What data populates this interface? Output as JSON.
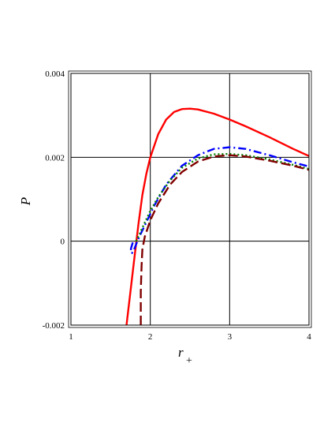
{
  "chart_data": {
    "type": "line",
    "xlabel": "r",
    "xlabel_subscript": "+",
    "ylabel": "P",
    "xlim": [
      1,
      4
    ],
    "ylim": [
      -0.002,
      0.004
    ],
    "grid": true,
    "x_ticks": [
      1,
      2,
      3,
      4
    ],
    "y_ticks": [
      -0.002,
      0,
      0.002,
      0.004
    ],
    "x_tick_labels": [
      "1",
      "2",
      "3",
      "4"
    ],
    "y_tick_labels": [
      "-0.002",
      "0",
      "0.002",
      "0.004"
    ],
    "series": [
      {
        "color": "#ff0000",
        "style": "solid",
        "points": [
          [
            1.7,
            -0.002
          ],
          [
            1.75,
            -0.0012
          ],
          [
            1.8,
            -0.0004
          ],
          [
            1.85,
            0.0004
          ],
          [
            1.9,
            0.0011
          ],
          [
            1.95,
            0.0016
          ],
          [
            2.0,
            0.002
          ],
          [
            2.1,
            0.00255
          ],
          [
            2.2,
            0.0029
          ],
          [
            2.3,
            0.00308
          ],
          [
            2.4,
            0.00315
          ],
          [
            2.5,
            0.00316
          ],
          [
            2.6,
            0.00314
          ],
          [
            2.8,
            0.00304
          ],
          [
            3.0,
            0.0029
          ],
          [
            3.2,
            0.00274
          ],
          [
            3.5,
            0.00248
          ],
          [
            3.8,
            0.0022
          ],
          [
            4.0,
            0.00203
          ]
        ]
      },
      {
        "color": "#0000ff",
        "style": "dashdot",
        "points": [
          [
            1.78,
            -3e-05
          ],
          [
            1.76,
            -0.00015
          ],
          [
            1.75,
            -0.00025
          ],
          [
            1.77,
            -0.00028
          ],
          [
            1.8,
            -0.00018
          ],
          [
            1.83,
            -3e-05
          ],
          [
            1.88,
            0.00018
          ],
          [
            1.95,
            0.00045
          ],
          [
            2.05,
            0.00085
          ],
          [
            2.2,
            0.00135
          ],
          [
            2.4,
            0.0018
          ],
          [
            2.6,
            0.00205
          ],
          [
            2.8,
            0.0022
          ],
          [
            3.0,
            0.00224
          ],
          [
            3.2,
            0.0022
          ],
          [
            3.5,
            0.00205
          ],
          [
            3.8,
            0.00188
          ],
          [
            4.0,
            0.00178
          ]
        ]
      },
      {
        "color": "#008000",
        "style": "dotted",
        "points": [
          [
            1.82,
            0.0
          ],
          [
            1.86,
            0.00015
          ],
          [
            1.92,
            0.0004
          ],
          [
            2.0,
            0.00072
          ],
          [
            2.1,
            0.00105
          ],
          [
            2.25,
            0.00145
          ],
          [
            2.4,
            0.00175
          ],
          [
            2.6,
            0.00197
          ],
          [
            2.8,
            0.00207
          ],
          [
            3.0,
            0.00208
          ],
          [
            3.2,
            0.00205
          ],
          [
            3.5,
            0.00195
          ],
          [
            3.8,
            0.00182
          ],
          [
            4.0,
            0.00172
          ]
        ]
      },
      {
        "color": "#800000",
        "style": "dashed",
        "points": [
          [
            1.88,
            -0.002
          ],
          [
            1.88,
            -0.0012
          ],
          [
            1.89,
            -0.0006
          ],
          [
            1.9,
            -0.0002
          ],
          [
            1.93,
            0.0001
          ],
          [
            2.0,
            0.0005
          ],
          [
            2.1,
            0.0009
          ],
          [
            2.25,
            0.00135
          ],
          [
            2.4,
            0.00165
          ],
          [
            2.6,
            0.0019
          ],
          [
            2.8,
            0.00202
          ],
          [
            3.0,
            0.00205
          ],
          [
            3.2,
            0.00202
          ],
          [
            3.5,
            0.00192
          ],
          [
            3.8,
            0.0018
          ],
          [
            4.0,
            0.0017
          ]
        ]
      }
    ]
  }
}
